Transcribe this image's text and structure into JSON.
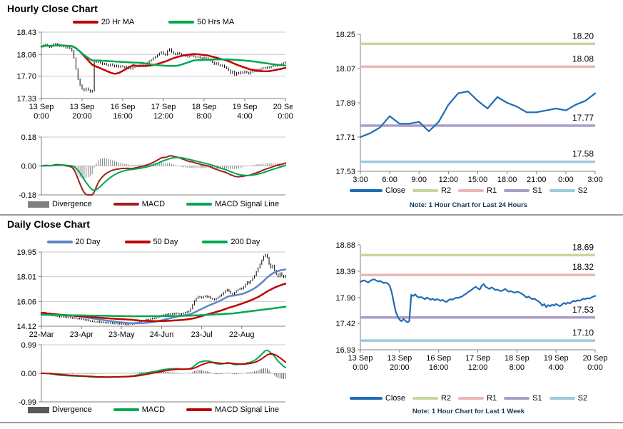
{
  "header": {
    "hourly_title": "Hourly Close Chart",
    "daily_title": "Daily Close Chart"
  },
  "colors": {
    "close_blue": "#1F6CB5",
    "ma20_hr_red": "#C00000",
    "ma50_hr_green": "#00A84F",
    "day20_blue": "#5C86C5",
    "day50_red": "#C00000",
    "day200_green": "#00A84F",
    "r2_green": "#C5D89F",
    "r1_pink": "#E8B8B8",
    "s1_purple": "#AB9DC9",
    "s2_lightblue": "#9ECBDD",
    "divergence_gray": "#808080",
    "grid_gray": "#C9C9C9",
    "axis_gray": "#808080"
  },
  "chart_data": {
    "hourly_price": {
      "type": "candlestick",
      "title": "Hourly Close Chart",
      "size": [
        390,
        135
      ],
      "plot": [
        38,
        5,
        380,
        98
      ],
      "ylim": [
        17.33,
        18.43
      ],
      "yticks": [
        "18.43",
        "18.06",
        "17.70",
        "17.33"
      ],
      "grid": true,
      "xlabels": [
        [
          "13 Sep",
          "0:00"
        ],
        [
          "13 Sep",
          "20:00"
        ],
        [
          "16 Sep",
          "16:00"
        ],
        [
          "17 Sep",
          "12:00"
        ],
        [
          "18 Sep",
          "8:00"
        ],
        [
          "19 Sep",
          "4:00"
        ],
        [
          "20 Sep",
          "0:00"
        ]
      ],
      "xtick_idx": [
        0,
        20,
        40,
        60,
        80,
        100,
        120
      ],
      "wick": 0.012,
      "values": [
        18.19,
        18.21,
        18.22,
        18.2,
        18.18,
        18.21,
        18.23,
        18.24,
        18.22,
        18.2,
        18.21,
        18.19,
        18.17,
        18.18,
        18.16,
        18.12,
        18.0,
        17.82,
        17.65,
        17.55,
        17.49,
        17.46,
        17.5,
        17.47,
        17.44,
        17.46,
        17.95,
        17.93,
        17.96,
        17.92,
        17.9,
        17.91,
        17.89,
        17.87,
        17.9,
        17.88,
        17.86,
        17.88,
        17.85,
        17.87,
        17.86,
        17.84,
        17.86,
        17.83,
        17.82,
        17.85,
        17.87,
        17.86,
        17.88,
        17.9,
        17.89,
        17.91,
        17.92,
        17.95,
        17.97,
        18.0,
        18.02,
        18.05,
        18.08,
        18.1,
        18.07,
        18.05,
        18.12,
        18.15,
        18.1,
        18.08,
        18.06,
        18.09,
        18.07,
        18.04,
        18.05,
        18.03,
        18.02,
        18.04,
        18.06,
        18.03,
        18.01,
        18.02,
        18.0,
        17.99,
        18.01,
        18.0,
        17.98,
        17.96,
        17.93,
        17.9,
        17.92,
        17.89,
        17.87,
        17.88,
        17.85,
        17.83,
        17.8,
        17.75,
        17.78,
        17.72,
        17.76,
        17.74,
        17.77,
        17.75,
        17.78,
        17.76,
        17.74,
        17.77,
        17.8,
        17.78,
        17.81,
        17.79,
        17.82,
        17.84,
        17.83,
        17.85,
        17.84,
        17.86,
        17.88,
        17.87,
        17.89,
        17.88,
        17.9,
        17.92,
        17.93
      ],
      "ma": [
        {
          "name": "20 Hr MA",
          "window": 20,
          "color": "#C00000"
        },
        {
          "name": "50 Hrs MA",
          "window": 50,
          "color": "#00A84F"
        }
      ],
      "legend": [
        {
          "label": "20 Hr MA",
          "color": "#C00000"
        },
        {
          "label": "50 Hrs MA",
          "color": "#00A84F"
        }
      ]
    },
    "hourly_macd": {
      "type": "macd",
      "source": "hourly_price",
      "size": [
        390,
        92
      ],
      "plot": [
        38,
        7,
        380,
        88
      ],
      "ylim": [
        -0.18,
        0.18
      ],
      "yticks": [
        "0.18",
        "0.00",
        "-0.18"
      ],
      "grid": true,
      "div_color": "#808080",
      "macd_color": "#A02020",
      "signal_color": "#00A84F",
      "legend": [
        {
          "label": "Divergence",
          "color": "#808080",
          "box": true
        },
        {
          "label": "MACD",
          "color": "#A02020"
        },
        {
          "label": "MACD Signal Line",
          "color": "#00A84F"
        }
      ]
    },
    "day_line": {
      "type": "line",
      "size": [
        433,
        224
      ],
      "plot": [
        65,
        12,
        394,
        204
      ],
      "ylim": [
        17.53,
        18.25
      ],
      "yticks": [
        "18.25",
        "18.07",
        "17.89",
        "17.71",
        "17.53"
      ],
      "grid": false,
      "xlabels": [
        "3:00",
        "6:00",
        "9:00",
        "12:00",
        "15:00",
        "18:00",
        "21:00",
        "0:00",
        "3:00"
      ],
      "line_color": "#1F6CB5",
      "values": [
        17.71,
        17.73,
        17.76,
        17.82,
        17.78,
        17.78,
        17.79,
        17.74,
        17.79,
        17.88,
        17.94,
        17.95,
        17.9,
        17.86,
        17.92,
        17.89,
        17.87,
        17.84,
        17.84,
        17.85,
        17.86,
        17.85,
        17.88,
        17.9,
        17.94
      ],
      "levels": [
        {
          "name": "R2",
          "label": "18.20",
          "value": 18.2,
          "color": "#C5D89F"
        },
        {
          "name": "R1",
          "label": "18.08",
          "value": 18.08,
          "color": "#E8B8B8"
        },
        {
          "name": "S1",
          "label": "17.77",
          "value": 17.77,
          "color": "#AB9DC9"
        },
        {
          "name": "S2",
          "label": "17.58",
          "value": 17.58,
          "color": "#9ECBDD"
        }
      ],
      "legend": [
        {
          "label": "Close",
          "color": "#1F6CB5",
          "wide": true
        },
        {
          "label": "R2",
          "color": "#C5D89F"
        },
        {
          "label": "R1",
          "color": "#E8B8B8"
        },
        {
          "label": "S1",
          "color": "#AB9DC9"
        },
        {
          "label": "S2",
          "color": "#9ECBDD"
        }
      ],
      "note": "Note: 1 Hour Chart for Last 24 Hours"
    },
    "daily_price": {
      "type": "candlestick",
      "title": "Daily Close Chart",
      "size": [
        390,
        128
      ],
      "plot": [
        38,
        5,
        380,
        109
      ],
      "ylim": [
        14.12,
        19.95
      ],
      "yticks": [
        "19.95",
        "18.01",
        "16.06",
        "14.12"
      ],
      "grid": true,
      "xlabels": [
        "22-Mar",
        "23-Apr",
        "23-May",
        "24-Jun",
        "23-Jul",
        "22-Aug"
      ],
      "xtick_idx": [
        0,
        22,
        44,
        66,
        88,
        110
      ],
      "wick": 0.05,
      "values": [
        15.15,
        15.2,
        15.1,
        15.05,
        15.1,
        15.0,
        14.95,
        15.0,
        14.9,
        14.92,
        14.85,
        14.9,
        14.85,
        14.88,
        14.8,
        14.82,
        14.78,
        14.75,
        14.8,
        14.72,
        14.7,
        14.73,
        14.68,
        14.65,
        14.6,
        14.62,
        14.55,
        14.5,
        14.52,
        14.48,
        14.45,
        14.5,
        14.42,
        14.45,
        14.4,
        14.42,
        14.38,
        14.4,
        14.35,
        14.38,
        14.32,
        14.35,
        14.3,
        14.33,
        14.3,
        14.28,
        14.32,
        14.25,
        14.3,
        14.35,
        14.3,
        14.38,
        14.42,
        14.45,
        14.5,
        14.55,
        14.52,
        14.6,
        14.65,
        14.62,
        14.7,
        14.75,
        14.72,
        14.8,
        14.85,
        14.9,
        14.95,
        15.0,
        15.05,
        15.0,
        15.1,
        15.05,
        15.12,
        15.08,
        15.15,
        15.1,
        15.05,
        15.1,
        15.15,
        15.2,
        15.25,
        15.3,
        15.5,
        15.8,
        16.1,
        16.3,
        16.45,
        16.4,
        16.35,
        16.45,
        16.5,
        16.4,
        16.45,
        16.3,
        16.25,
        16.2,
        16.3,
        16.4,
        16.5,
        16.6,
        16.75,
        16.9,
        17.0,
        16.85,
        16.7,
        16.6,
        16.75,
        16.9,
        17.0,
        17.1,
        17.05,
        17.2,
        17.4,
        17.6,
        17.5,
        17.7,
        17.9,
        18.1,
        18.4,
        18.7,
        19.0,
        19.3,
        19.6,
        19.75,
        19.5,
        19.0,
        18.7,
        18.9,
        18.5,
        18.2,
        18.0,
        18.3,
        18.1,
        17.95,
        18.1
      ],
      "ma": [
        {
          "name": "20 Day",
          "window": 20,
          "color": "#5C86C5"
        },
        {
          "name": "50 Day",
          "window": 50,
          "color": "#C00000"
        },
        {
          "name": "200 Day",
          "points": [
            [
              0,
              15.02
            ],
            [
              25,
              14.96
            ],
            [
              50,
              14.9
            ],
            [
              75,
              14.92
            ],
            [
              90,
              15.0
            ],
            [
              105,
              15.12
            ],
            [
              115,
              15.3
            ],
            [
              125,
              15.48
            ],
            [
              134,
              15.65
            ]
          ],
          "color": "#00A84F"
        }
      ],
      "legend": [
        {
          "label": "20 Day",
          "color": "#5C86C5"
        },
        {
          "label": "50 Day",
          "color": "#C00000"
        },
        {
          "label": "200 Day",
          "color": "#00A84F"
        }
      ]
    },
    "daily_macd": {
      "type": "macd",
      "source": "daily_price",
      "size": [
        390,
        92
      ],
      "plot": [
        38,
        5,
        380,
        85
      ],
      "ylim": [
        -0.99,
        0.99
      ],
      "yticks": [
        "0.99",
        "0.00",
        "-0.99"
      ],
      "grid": true,
      "div_color": "#595959",
      "macd_color": "#00A84F",
      "signal_color": "#C00000",
      "legend": [
        {
          "label": "Divergence",
          "color": "#595959",
          "box": true
        },
        {
          "label": "MACD",
          "color": "#00A84F"
        },
        {
          "label": "MACD Signal Line",
          "color": "#C00000"
        }
      ]
    },
    "week_line": {
      "type": "line",
      "source": "hourly_price",
      "size": [
        433,
        198
      ],
      "plot": [
        65,
        13,
        394,
        160
      ],
      "ylim": [
        16.93,
        18.88
      ],
      "yticks": [
        "18.88",
        "18.39",
        "17.90",
        "17.42",
        "16.93"
      ],
      "grid": false,
      "xlabels": [
        [
          "13 Sep",
          "0:00"
        ],
        [
          "13 Sep",
          "20:00"
        ],
        [
          "16 Sep",
          "16:00"
        ],
        [
          "17 Sep",
          "12:00"
        ],
        [
          "18 Sep",
          "8:00"
        ],
        [
          "19 Sep",
          "4:00"
        ],
        [
          "20 Sep",
          "0:00"
        ]
      ],
      "xtick_idx": [
        0,
        20,
        40,
        60,
        80,
        100,
        120
      ],
      "line_color": "#1F6CB5",
      "levels": [
        {
          "name": "R2",
          "label": "18.69",
          "value": 18.69,
          "color": "#C5D89F"
        },
        {
          "name": "R1",
          "label": "18.32",
          "value": 18.32,
          "color": "#E8B8B8"
        },
        {
          "name": "S1",
          "label": "17.53",
          "value": 17.53,
          "color": "#AB9DC9"
        },
        {
          "name": "S2",
          "label": "17.10",
          "value": 17.1,
          "color": "#9ECBDD"
        }
      ],
      "legend": [
        {
          "label": "Close",
          "color": "#1F6CB5",
          "wide": true
        },
        {
          "label": "R2",
          "color": "#C5D89F"
        },
        {
          "label": "R1",
          "color": "#E8B8B8"
        },
        {
          "label": "S1",
          "color": "#AB9DC9"
        },
        {
          "label": "S2",
          "color": "#9ECBDD"
        }
      ],
      "note": "Note: 1 Hour Chart for Last 1 Week"
    }
  }
}
